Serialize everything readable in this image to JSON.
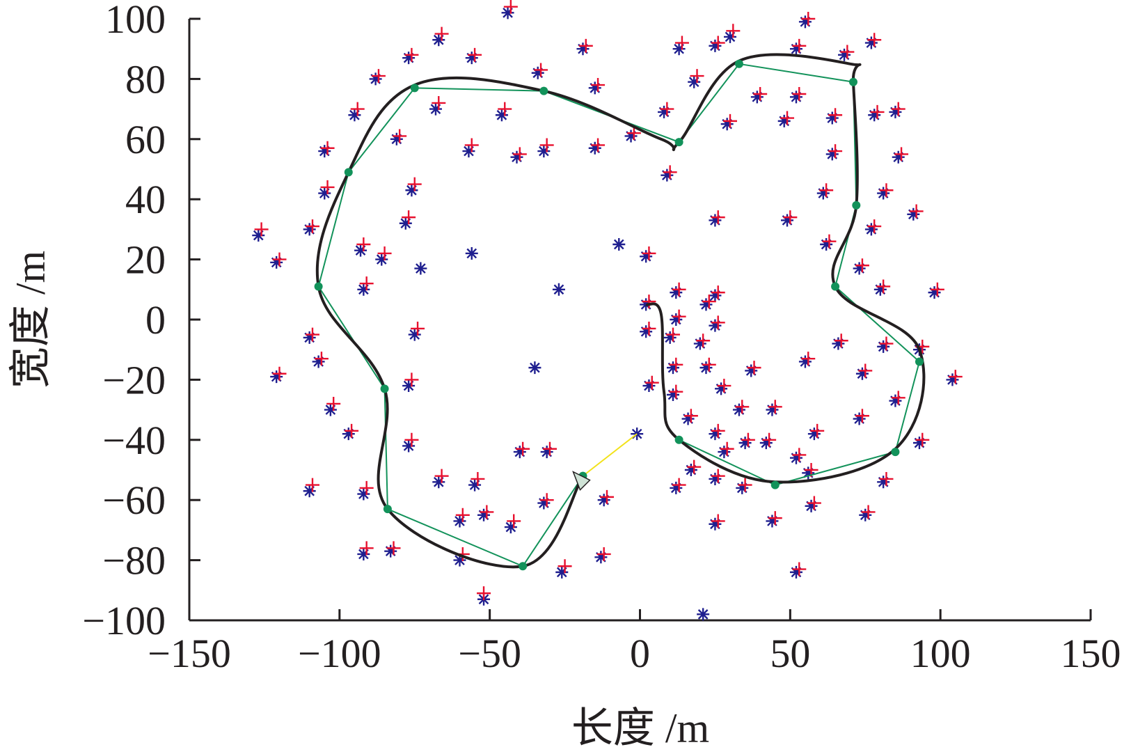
{
  "chart_data": {
    "type": "scatter",
    "title": "",
    "xlabel": "长度 /m",
    "ylabel": "宽度 /m",
    "xlim": [
      -150,
      150
    ],
    "ylim": [
      -100,
      100
    ],
    "xticks": [
      "−150",
      "−100",
      "−50",
      "0",
      "50",
      "100",
      "150"
    ],
    "yticks": [
      "−100",
      "−80",
      "−60",
      "−40",
      "−20",
      "0",
      "20",
      "40",
      "60",
      "80",
      "100"
    ],
    "xtick_values": [
      -150,
      -100,
      -50,
      0,
      50,
      100,
      150
    ],
    "ytick_values": [
      -100,
      -80,
      -60,
      -40,
      -20,
      0,
      20,
      40,
      60,
      80,
      100
    ],
    "grid": false,
    "colors": {
      "blue_marker": "#1f1f8f",
      "red_marker": "#e8102e",
      "smooth_path": "#231f20",
      "polyline": "#12925a",
      "waypoint": "#12925a",
      "segment": "#f2e21a",
      "arrow_fill": "#cfe3d6"
    },
    "series": [
      {
        "kind": "blue-star",
        "points": [
          [
            -127,
            28
          ],
          [
            -121,
            19
          ],
          [
            -110,
            30
          ],
          [
            -105,
            56
          ],
          [
            -105,
            42
          ],
          [
            -110,
            -6
          ],
          [
            -107,
            -14
          ],
          [
            -121,
            -19
          ],
          [
            -103,
            -30
          ],
          [
            -97,
            -38
          ],
          [
            -110,
            -57
          ],
          [
            -92,
            -58
          ],
          [
            -92,
            -78
          ],
          [
            -83,
            -77
          ],
          [
            -95,
            68
          ],
          [
            -93,
            23
          ],
          [
            -92,
            10
          ],
          [
            -86,
            20
          ],
          [
            -88,
            80
          ],
          [
            -81,
            60
          ],
          [
            -77,
            87
          ],
          [
            -78,
            32
          ],
          [
            -76,
            43
          ],
          [
            -73,
            17
          ],
          [
            -75,
            -5
          ],
          [
            -77,
            -22
          ],
          [
            -77,
            -42
          ],
          [
            -67,
            93
          ],
          [
            -68,
            70
          ],
          [
            -56,
            87
          ],
          [
            -57,
            56
          ],
          [
            -56,
            22
          ],
          [
            -46,
            68
          ],
          [
            -41,
            54
          ],
          [
            -34,
            82
          ],
          [
            -32,
            56
          ],
          [
            -27,
            10
          ],
          [
            -19,
            90
          ],
          [
            -15,
            77
          ],
          [
            -15,
            57
          ],
          [
            -35,
            -16
          ],
          [
            -7,
            25
          ],
          [
            -3,
            61
          ],
          [
            -1,
            -38
          ],
          [
            -44,
            102
          ],
          [
            -67,
            -54
          ],
          [
            -55,
            -55
          ],
          [
            -60,
            -67
          ],
          [
            -52,
            -65
          ],
          [
            -43,
            -69
          ],
          [
            -40,
            -44
          ],
          [
            -31,
            -44
          ],
          [
            -32,
            -61
          ],
          [
            -60,
            -80
          ],
          [
            -26,
            -84
          ],
          [
            -12,
            -60
          ],
          [
            -13,
            -79
          ],
          [
            -52,
            -93
          ],
          [
            13,
            90
          ],
          [
            18,
            79
          ],
          [
            8,
            69
          ],
          [
            9,
            48
          ],
          [
            2,
            21
          ],
          [
            2,
            5
          ],
          [
            12,
            9
          ],
          [
            25,
            8
          ],
          [
            12,
            0
          ],
          [
            22,
            5
          ],
          [
            25,
            -2
          ],
          [
            2,
            -4
          ],
          [
            10,
            -6
          ],
          [
            20,
            -8
          ],
          [
            37,
            -17
          ],
          [
            27,
            -23
          ],
          [
            22,
            -16
          ],
          [
            11,
            -16
          ],
          [
            3,
            -22
          ],
          [
            11,
            -25
          ],
          [
            16,
            -33
          ],
          [
            33,
            -30
          ],
          [
            44,
            -30
          ],
          [
            25,
            -38
          ],
          [
            35,
            -41
          ],
          [
            42,
            -41
          ],
          [
            28,
            -44
          ],
          [
            17,
            -50
          ],
          [
            25,
            -53
          ],
          [
            34,
            -56
          ],
          [
            12,
            -56
          ],
          [
            25,
            -68
          ],
          [
            44,
            -67
          ],
          [
            52,
            -46
          ],
          [
            58,
            -38
          ],
          [
            57,
            -62
          ],
          [
            52,
            -84
          ],
          [
            21,
            -98
          ],
          [
            25,
            91
          ],
          [
            30,
            94
          ],
          [
            29,
            65
          ],
          [
            39,
            74
          ],
          [
            25,
            33
          ],
          [
            48,
            66
          ],
          [
            52,
            74
          ],
          [
            52,
            90
          ],
          [
            55,
            99
          ],
          [
            49,
            33
          ],
          [
            55,
            -14
          ],
          [
            56,
            -51
          ],
          [
            68,
            88
          ],
          [
            77,
            92
          ],
          [
            64,
            67
          ],
          [
            64,
            55
          ],
          [
            61,
            42
          ],
          [
            62,
            25
          ],
          [
            73,
            17
          ],
          [
            78,
            68
          ],
          [
            85,
            69
          ],
          [
            86,
            54
          ],
          [
            81,
            42
          ],
          [
            77,
            30
          ],
          [
            91,
            35
          ],
          [
            80,
            10
          ],
          [
            98,
            9
          ],
          [
            66,
            -8
          ],
          [
            74,
            -18
          ],
          [
            81,
            -9
          ],
          [
            93,
            -10
          ],
          [
            104,
            -20
          ],
          [
            85,
            -27
          ],
          [
            73,
            -33
          ],
          [
            93,
            -41
          ],
          [
            81,
            -54
          ],
          [
            75,
            -65
          ]
        ]
      },
      {
        "kind": "red-plus",
        "points": [
          [
            -126,
            30
          ],
          [
            -120,
            20
          ],
          [
            -109,
            31
          ],
          [
            -104,
            57
          ],
          [
            -104,
            44
          ],
          [
            -109,
            -5
          ],
          [
            -106,
            -13
          ],
          [
            -120,
            -18
          ],
          [
            -102,
            -28
          ],
          [
            -96,
            -37
          ],
          [
            -109,
            -55
          ],
          [
            -91,
            -56
          ],
          [
            -91,
            -76
          ],
          [
            -82,
            -76
          ],
          [
            -94,
            70
          ],
          [
            -92,
            25
          ],
          [
            -91,
            12
          ],
          [
            -85,
            22
          ],
          [
            -87,
            81
          ],
          [
            -80,
            61
          ],
          [
            -76,
            88
          ],
          [
            -77,
            34
          ],
          [
            -75,
            45
          ],
          [
            -74,
            -3
          ],
          [
            -76,
            -20
          ],
          [
            -76,
            -40
          ],
          [
            -66,
            95
          ],
          [
            -67,
            72
          ],
          [
            -55,
            88
          ],
          [
            -56,
            58
          ],
          [
            -45,
            70
          ],
          [
            -40,
            55
          ],
          [
            -33,
            83
          ],
          [
            -31,
            58
          ],
          [
            -18,
            91
          ],
          [
            -14,
            78
          ],
          [
            -14,
            58
          ],
          [
            -2,
            62
          ],
          [
            -43,
            104
          ],
          [
            -66,
            -52
          ],
          [
            -54,
            -53
          ],
          [
            -59,
            -65
          ],
          [
            -51,
            -64
          ],
          [
            -42,
            -67
          ],
          [
            -39,
            -43
          ],
          [
            -30,
            -43
          ],
          [
            -31,
            -60
          ],
          [
            -59,
            -78
          ],
          [
            -25,
            -82
          ],
          [
            -11,
            -59
          ],
          [
            -12,
            -78
          ],
          [
            -52,
            -91
          ],
          [
            14,
            92
          ],
          [
            19,
            81
          ],
          [
            9,
            70
          ],
          [
            10,
            49
          ],
          [
            3,
            22
          ],
          [
            3,
            6
          ],
          [
            13,
            10
          ],
          [
            26,
            9
          ],
          [
            13,
            1
          ],
          [
            23,
            6
          ],
          [
            26,
            -1
          ],
          [
            3,
            -3
          ],
          [
            11,
            -5
          ],
          [
            21,
            -7
          ],
          [
            38,
            -16
          ],
          [
            28,
            -22
          ],
          [
            23,
            -15
          ],
          [
            12,
            -15
          ],
          [
            4,
            -21
          ],
          [
            12,
            -24
          ],
          [
            17,
            -32
          ],
          [
            34,
            -29
          ],
          [
            45,
            -29
          ],
          [
            26,
            -37
          ],
          [
            36,
            -40
          ],
          [
            43,
            -40
          ],
          [
            29,
            -43
          ],
          [
            18,
            -49
          ],
          [
            26,
            -52
          ],
          [
            35,
            -55
          ],
          [
            13,
            -55
          ],
          [
            26,
            -67
          ],
          [
            45,
            -66
          ],
          [
            53,
            -45
          ],
          [
            59,
            -37
          ],
          [
            58,
            -61
          ],
          [
            53,
            -83
          ],
          [
            26,
            92
          ],
          [
            31,
            96
          ],
          [
            30,
            66
          ],
          [
            40,
            75
          ],
          [
            26,
            34
          ],
          [
            49,
            67
          ],
          [
            53,
            75
          ],
          [
            53,
            91
          ],
          [
            56,
            100
          ],
          [
            50,
            34
          ],
          [
            56,
            -13
          ],
          [
            57,
            -50
          ],
          [
            69,
            89
          ],
          [
            78,
            93
          ],
          [
            65,
            68
          ],
          [
            65,
            56
          ],
          [
            62,
            43
          ],
          [
            63,
            26
          ],
          [
            74,
            18
          ],
          [
            79,
            69
          ],
          [
            86,
            70
          ],
          [
            87,
            55
          ],
          [
            82,
            43
          ],
          [
            78,
            31
          ],
          [
            92,
            36
          ],
          [
            81,
            11
          ],
          [
            99,
            10
          ],
          [
            67,
            -7
          ],
          [
            75,
            -17
          ],
          [
            82,
            -8
          ],
          [
            94,
            -9
          ],
          [
            105,
            -19
          ],
          [
            86,
            -26
          ],
          [
            74,
            -32
          ],
          [
            94,
            -40
          ],
          [
            82,
            -53
          ],
          [
            76,
            -64
          ]
        ]
      }
    ],
    "waypoints": [
      [
        -19,
        -52
      ],
      [
        -39,
        -82
      ],
      [
        -84,
        -63
      ],
      [
        -85,
        -23
      ],
      [
        -107,
        11
      ],
      [
        -97,
        49
      ],
      [
        -75,
        77
      ],
      [
        -32,
        76
      ],
      [
        13,
        59
      ],
      [
        33,
        85
      ],
      [
        71,
        79
      ],
      [
        72,
        38
      ],
      [
        65,
        11
      ],
      [
        93,
        -14
      ],
      [
        85,
        -44
      ],
      [
        45,
        -55
      ],
      [
        13,
        -40
      ]
    ],
    "segment": [
      [
        -19,
        -52
      ],
      [
        -1,
        -38
      ]
    ],
    "arrow_at": [
      -19,
      -52
    ],
    "path_ctrl": [
      [
        -19,
        -52
      ],
      [
        -39,
        -82
      ],
      [
        -84,
        -63
      ],
      [
        -85,
        -23
      ],
      [
        -107,
        11
      ],
      [
        -97,
        49
      ],
      [
        -75,
        78
      ],
      [
        -32,
        76
      ],
      [
        7,
        60
      ],
      [
        13,
        59
      ],
      [
        33,
        86
      ],
      [
        70,
        85
      ],
      [
        71,
        79
      ],
      [
        72,
        38
      ],
      [
        65,
        11
      ],
      [
        93,
        -10
      ],
      [
        85,
        -43
      ],
      [
        45,
        -54
      ],
      [
        13,
        -40
      ],
      [
        8,
        -24
      ],
      [
        7,
        2
      ],
      [
        2,
        5
      ]
    ]
  }
}
